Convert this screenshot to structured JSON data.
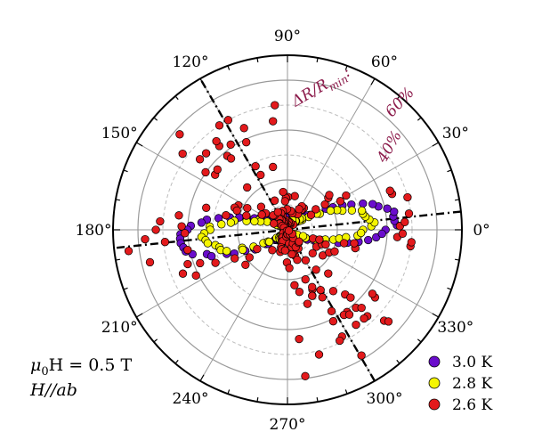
{
  "chart_data": {
    "type": "scatter",
    "projection": "polar",
    "angle_ticks_deg": [
      0,
      30,
      60,
      90,
      120,
      150,
      180,
      210,
      240,
      270,
      300,
      330
    ],
    "angle_tick_labels": [
      "0°",
      "30°",
      "60°",
      "90°",
      "120°",
      "150°",
      "180°",
      "210°",
      "240°",
      "270°",
      "300°",
      "330°"
    ],
    "radial_ticks_percent": [
      20,
      40,
      60
    ],
    "radial_tick_labels": [
      "40%",
      "60%"
    ],
    "radial_max_percent": 70,
    "radial_axis_label": "ΔR/R",
    "radial_axis_label_sub": "min",
    "radial_axis_label_suffix": ":",
    "reference_lines_deg": [
      -60,
      6
    ],
    "annotation_line1": "μ",
    "annotation_line1_sub": "0",
    "annotation_line1_rest": "H = 0.5 T",
    "annotation_line2": "H//ab",
    "grid": true,
    "legend_position": "bottom-right",
    "series": [
      {
        "name": "3.0 K",
        "color": "#6a0dcc",
        "model": {
          "amp": 40,
          "width": 12,
          "base": 3,
          "noise": 1.5
        }
      },
      {
        "name": "2.8 K",
        "color": "#f5f500",
        "model": {
          "amp": 31,
          "width": 10,
          "base": 2,
          "noise": 2
        }
      },
      {
        "name": "2.6 K",
        "color": "#e31a1c",
        "model": {
          "amp": 50,
          "width": 25,
          "base": 4,
          "noise": 12
        }
      }
    ]
  }
}
